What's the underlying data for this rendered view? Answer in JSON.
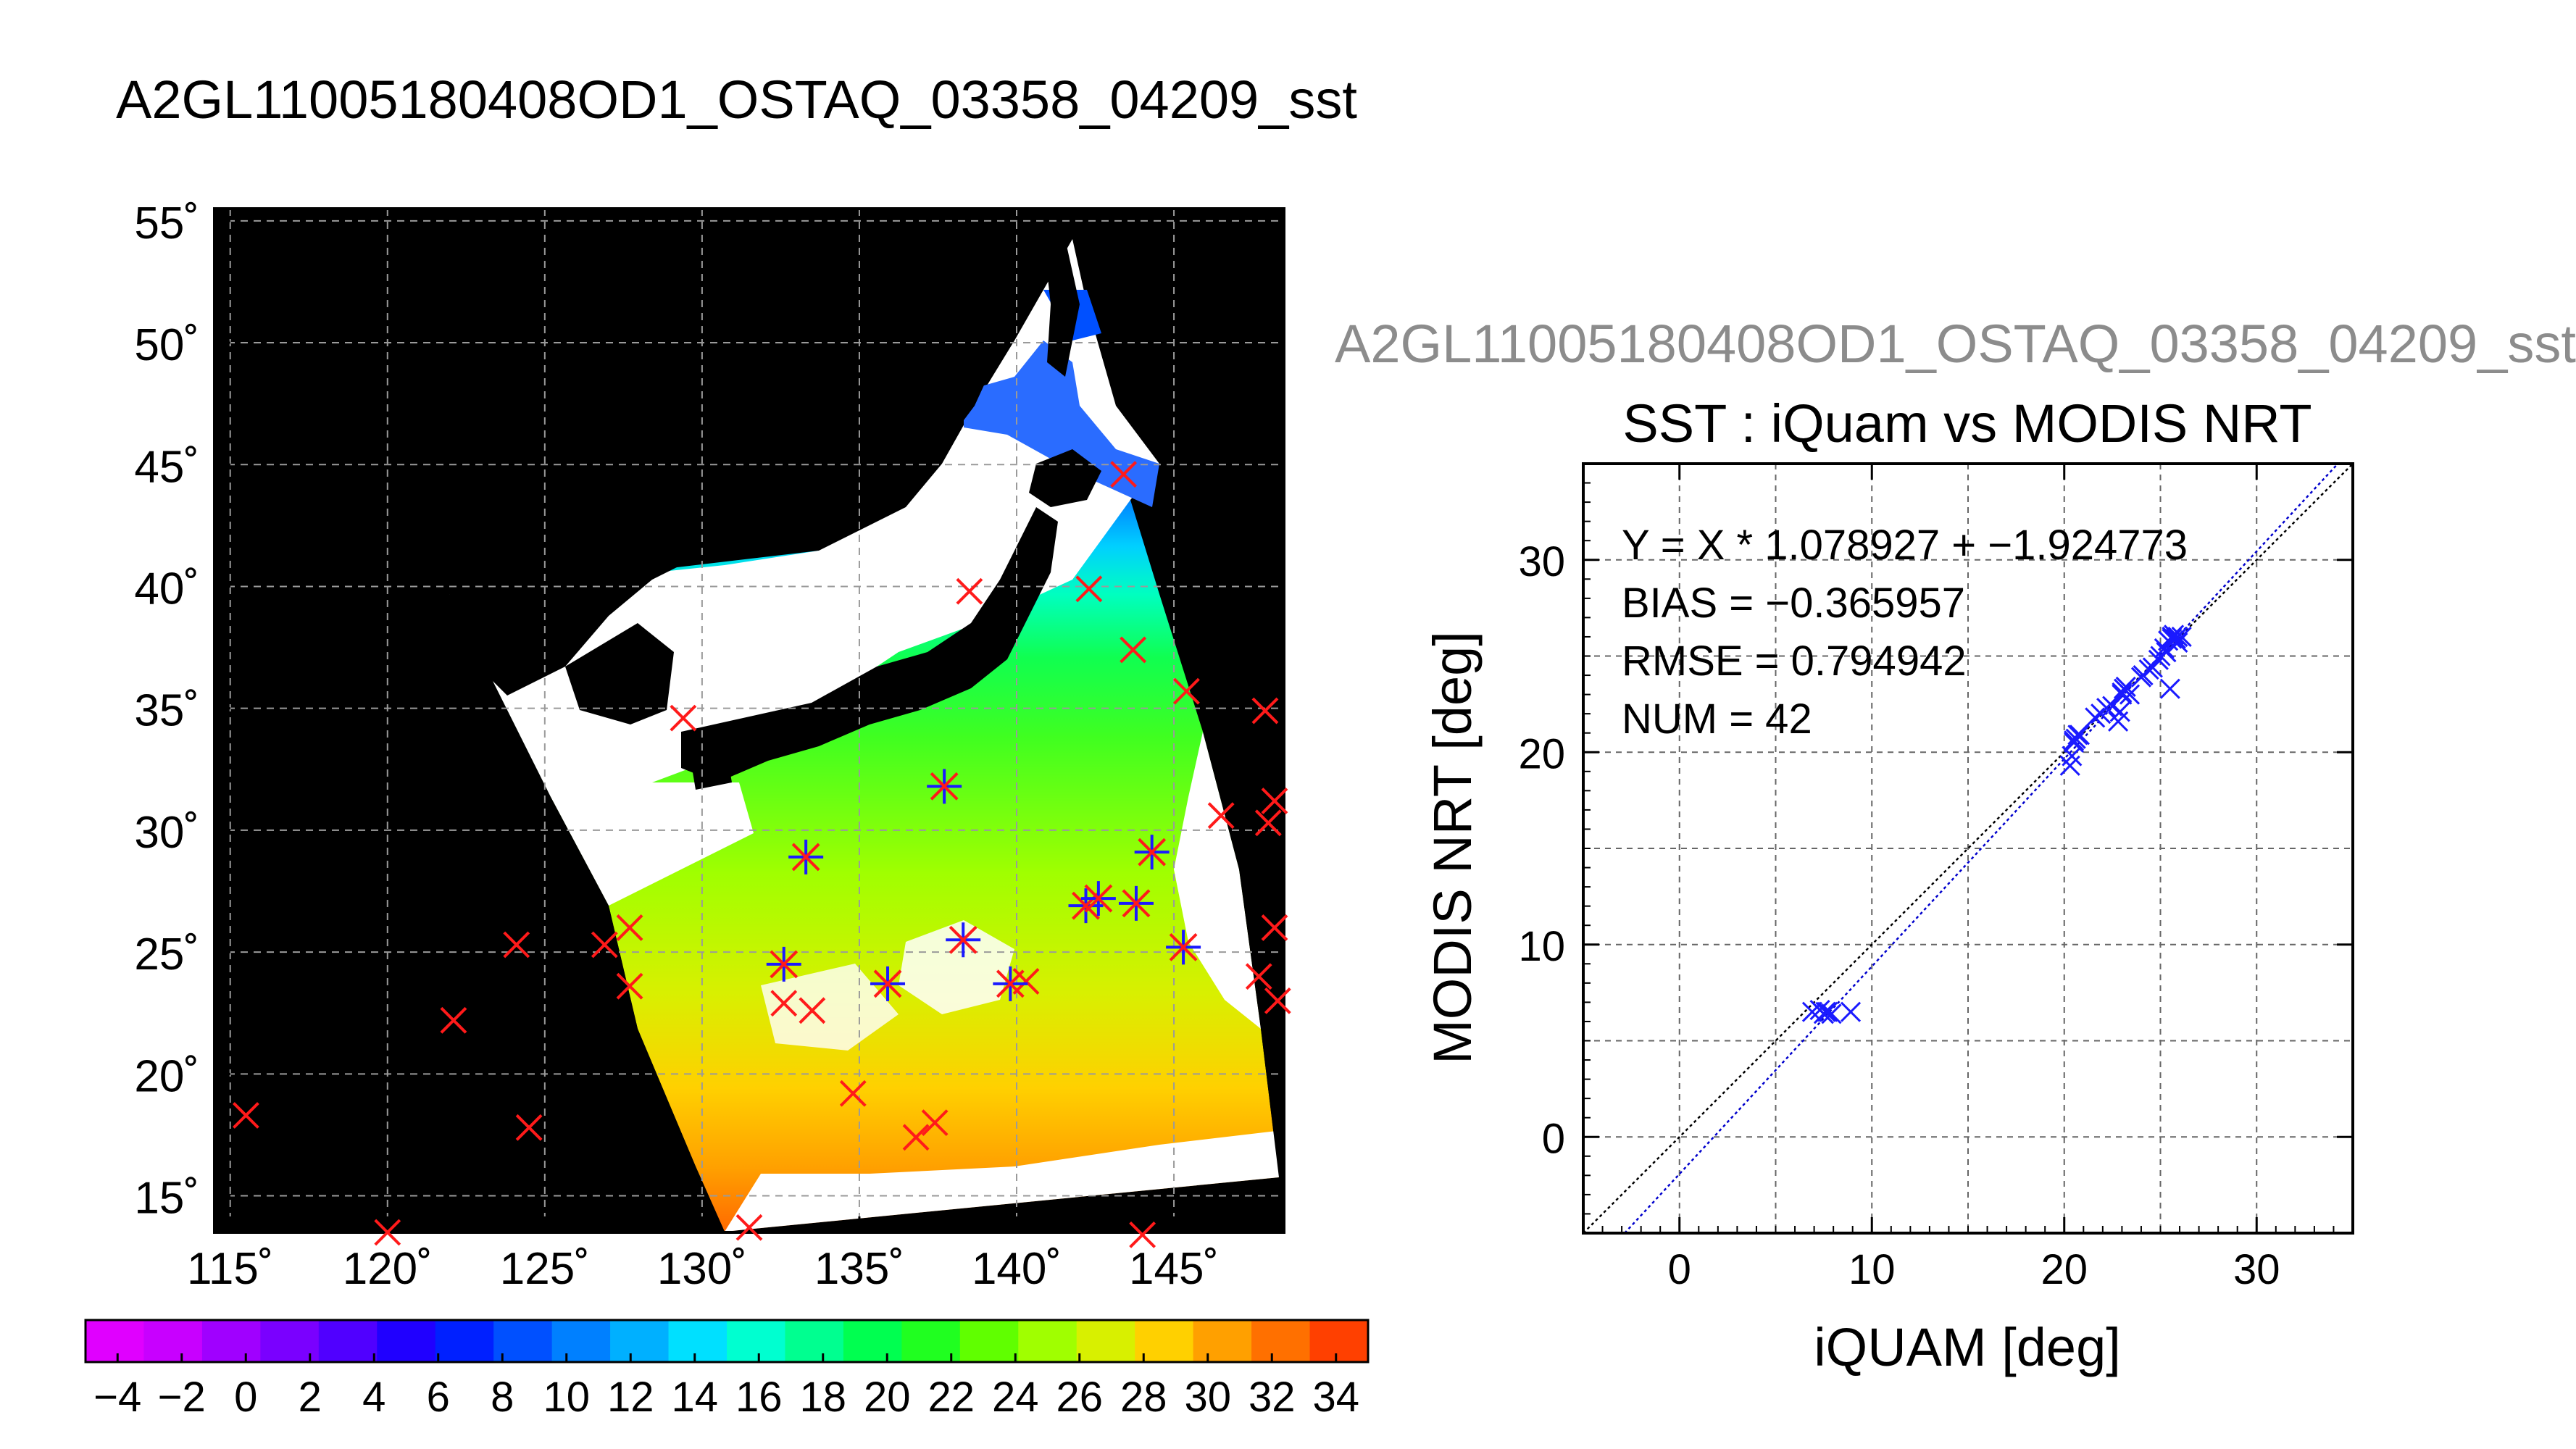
{
  "map_title": "A2GL11005180408OD1_OSTAQ_03358_04209_sst",
  "scatter_file_title": "A2GL11005180408OD1_OSTAQ_03358_04209_sst",
  "colors": {
    "land": "#000000",
    "cloud": "#ffffff",
    "insitu_marker": "#ff1a1a",
    "matchup_marker": "#1a1aff",
    "fit_line": "#0000cc",
    "identity_line": "#000000"
  },
  "chart_data": [
    {
      "type": "map",
      "title": "A2GL11005180408OD1_OSTAQ_03358_04209_sst",
      "lat_ticks": [
        "15˚",
        "20˚",
        "25˚",
        "30˚",
        "35˚",
        "40˚",
        "45˚",
        "50˚",
        "55˚"
      ],
      "lon_ticks": [
        "115˚",
        "120˚",
        "125˚",
        "130˚",
        "135˚",
        "140˚",
        "145˚"
      ],
      "lat_tick_values": [
        15,
        20,
        25,
        30,
        35,
        40,
        45,
        50,
        55
      ],
      "lon_tick_values": [
        115,
        120,
        125,
        130,
        135,
        140,
        145
      ],
      "lon_range": [
        114.5,
        148.5
      ],
      "lat_range": [
        13.5,
        55.5
      ],
      "grid": true,
      "colorbar": {
        "tick_labels": [
          "−4",
          "−2",
          "0",
          "2",
          "4",
          "6",
          "8",
          "10",
          "12",
          "14",
          "16",
          "18",
          "20",
          "22",
          "24",
          "26",
          "28",
          "30",
          "32",
          "34"
        ],
        "range": [
          -5,
          35
        ],
        "colors": [
          "#e000ff",
          "#c800ff",
          "#a000ff",
          "#7a00ff",
          "#5000ff",
          "#2000ff",
          "#0020ff",
          "#0050ff",
          "#0080ff",
          "#00b0ff",
          "#00e0ff",
          "#00ffd0",
          "#00ff90",
          "#00ff50",
          "#20ff20",
          "#60ff00",
          "#a0ff00",
          "#d8f000",
          "#ffd000",
          "#ffa000",
          "#ff7000",
          "#ff4000"
        ]
      },
      "insitu_points": [
        [
          115.5,
          18.3
        ],
        [
          120.0,
          13.5
        ],
        [
          124.1,
          25.3
        ],
        [
          124.5,
          17.8
        ],
        [
          122.1,
          22.2
        ],
        [
          126.9,
          25.3
        ],
        [
          127.7,
          26.0
        ],
        [
          127.7,
          23.6
        ],
        [
          129.4,
          34.6
        ],
        [
          131.5,
          13.7
        ],
        [
          132.6,
          22.9
        ],
        [
          133.5,
          22.6
        ],
        [
          134.8,
          19.2
        ],
        [
          136.8,
          17.4
        ],
        [
          137.4,
          18.0
        ],
        [
          138.5,
          39.8
        ],
        [
          140.3,
          23.8
        ],
        [
          142.3,
          39.9
        ],
        [
          143.4,
          44.6
        ],
        [
          143.7,
          37.4
        ],
        [
          144.0,
          13.4
        ],
        [
          145.4,
          35.7
        ],
        [
          146.5,
          30.6
        ],
        [
          147.7,
          24.0
        ],
        [
          147.9,
          34.9
        ],
        [
          148.0,
          30.3
        ],
        [
          148.2,
          31.2
        ],
        [
          148.2,
          26.0
        ],
        [
          148.3,
          23.0
        ]
      ],
      "matchup_points": [
        [
          132.6,
          24.5
        ],
        [
          133.3,
          28.9
        ],
        [
          135.9,
          23.7
        ],
        [
          137.7,
          31.8
        ],
        [
          138.3,
          25.5
        ],
        [
          139.8,
          23.7
        ],
        [
          142.2,
          26.9
        ],
        [
          142.6,
          27.2
        ],
        [
          143.8,
          27.0
        ],
        [
          144.3,
          29.1
        ],
        [
          145.3,
          25.2
        ]
      ]
    },
    {
      "type": "scatter",
      "title": "SST : iQuam vs MODIS NRT",
      "xlabel": "iQUAM [deg]",
      "ylabel": "MODIS NRT [deg]",
      "xlim": [
        -5,
        35
      ],
      "ylim": [
        -5,
        35
      ],
      "x_ticks": [
        0,
        10,
        20,
        30
      ],
      "y_ticks": [
        0,
        10,
        20,
        30
      ],
      "grid": true,
      "annotations": [
        "Y = X * 1.078927 + −1.924773",
        "BIAS = −0.365957",
        "RMSE = 0.794942",
        "NUM = 42"
      ],
      "fit": {
        "slope": 1.078927,
        "intercept": -1.924773
      },
      "x": [
        6.9,
        7.3,
        7.5,
        7.7,
        7.9,
        8.9,
        20.3,
        20.4,
        20.5,
        20.6,
        20.8,
        21.9,
        22.2,
        22.8,
        22.9,
        23.0,
        23.1,
        23.2,
        23.4,
        24.1,
        24.4,
        25.0,
        25.2,
        25.4,
        25.6,
        25.7,
        25.9,
        26.1,
        25.5,
        25.8,
        24.9,
        24.0,
        22.5,
        21.6,
        20.7,
        7.6,
        25.3,
        25.9,
        23.0,
        20.5,
        24.6,
        25.6
      ],
      "y": [
        6.5,
        6.6,
        6.4,
        6.5,
        6.4,
        6.5,
        19.3,
        19.8,
        20.5,
        20.7,
        20.9,
        22.0,
        22.3,
        21.6,
        22.1,
        23.0,
        23.3,
        23.4,
        23.0,
        24.0,
        24.3,
        25.0,
        25.4,
        25.8,
        26.0,
        26.1,
        26.0,
        26.0,
        23.3,
        25.9,
        24.8,
        23.9,
        22.4,
        21.8,
        20.9,
        6.5,
        25.2,
        25.7,
        23.1,
        20.6,
        24.4,
        25.9
      ]
    }
  ]
}
